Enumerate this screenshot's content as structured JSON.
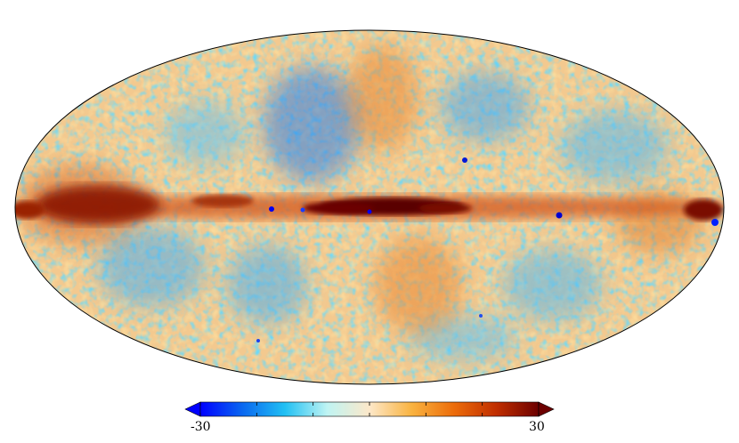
{
  "map": {
    "projection": "mollweide",
    "style": "all-sky map, galactic plane band across the middle"
  },
  "colorbar": {
    "min_label": "-30",
    "max_label": "30",
    "min_value": -30,
    "max_value": 30,
    "extend": "both",
    "colors": [
      "#0000ff",
      "#0a68f0",
      "#21c0f3",
      "#bff4f3",
      "#fde8c9",
      "#f9b340",
      "#ec6c0a",
      "#c02e00",
      "#6c0000"
    ]
  }
}
